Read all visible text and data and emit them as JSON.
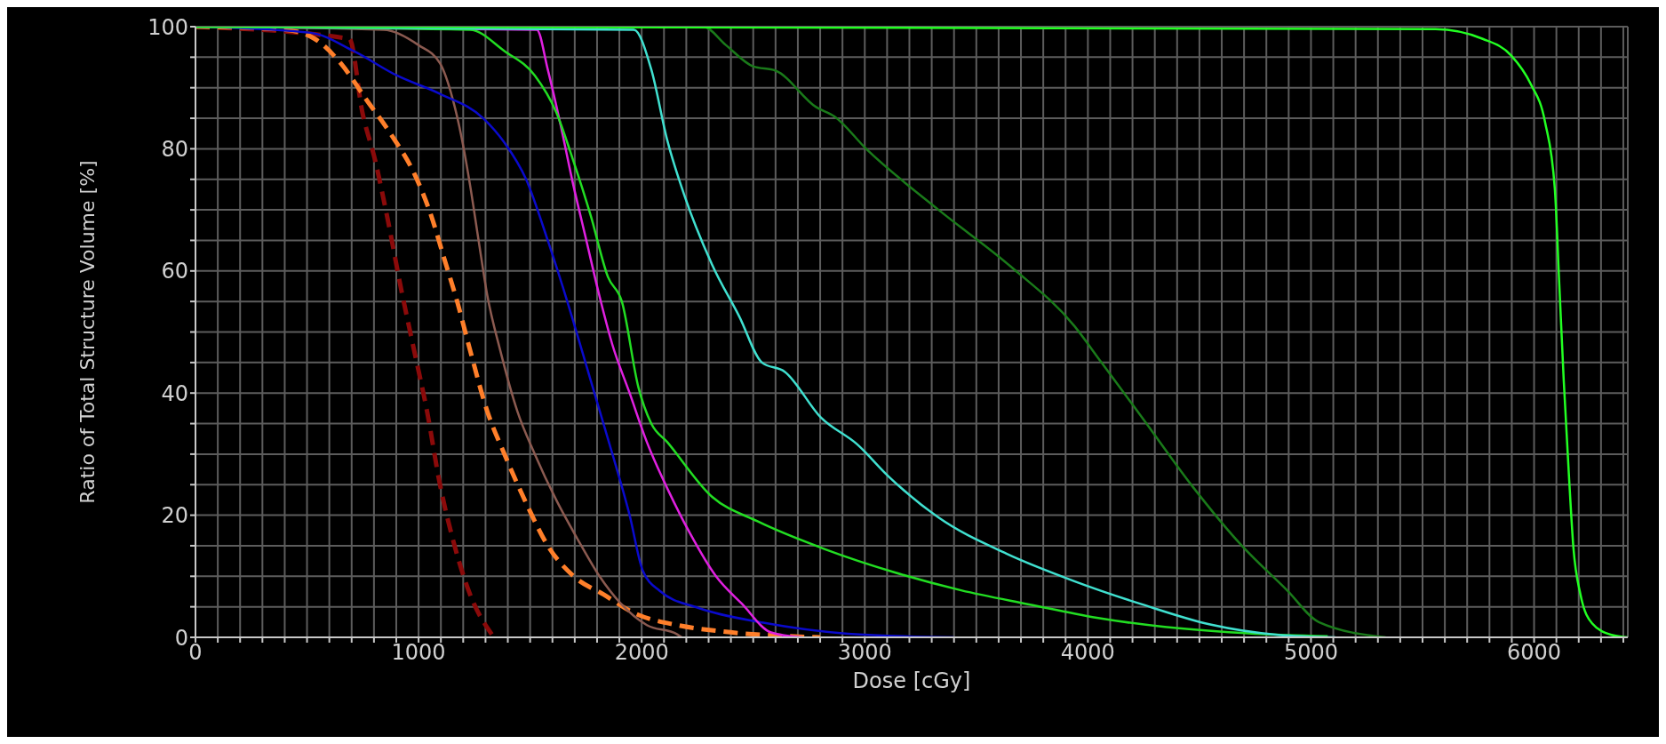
{
  "chart_data": {
    "type": "line",
    "xlabel": "Dose [cGy]",
    "ylabel": "Ratio of Total Structure Volume [%]",
    "grid": true,
    "marker": "none",
    "xlim": [
      0,
      6420
    ],
    "ylim": [
      0,
      100
    ],
    "xticks": [
      0,
      {
        "value": 100,
        "label": null
      },
      {
        "value": 200,
        "label": null
      },
      {
        "value": 300,
        "label": null
      },
      {
        "value": 400,
        "label": null
      },
      {
        "value": 500,
        "label": null
      },
      {
        "value": 600,
        "label": null
      },
      {
        "value": 700,
        "label": null
      },
      {
        "value": 800,
        "label": null
      },
      {
        "value": 900,
        "label": null
      },
      1000,
      {
        "value": 1100,
        "label": null
      },
      {
        "value": 1200,
        "label": null
      },
      {
        "value": 1300,
        "label": null
      },
      {
        "value": 1400,
        "label": null
      },
      {
        "value": 1500,
        "label": null
      },
      {
        "value": 1600,
        "label": null
      },
      {
        "value": 1700,
        "label": null
      },
      {
        "value": 1800,
        "label": null
      },
      {
        "value": 1900,
        "label": null
      },
      2000,
      {
        "value": 2100,
        "label": null
      },
      {
        "value": 2200,
        "label": null
      },
      {
        "value": 2300,
        "label": null
      },
      {
        "value": 2400,
        "label": null
      },
      {
        "value": 2500,
        "label": null
      },
      {
        "value": 2600,
        "label": null
      },
      {
        "value": 2700,
        "label": null
      },
      {
        "value": 2800,
        "label": null
      },
      {
        "value": 2900,
        "label": null
      },
      3000,
      {
        "value": 3100,
        "label": null
      },
      {
        "value": 3200,
        "label": null
      },
      {
        "value": 3300,
        "label": null
      },
      {
        "value": 3400,
        "label": null
      },
      {
        "value": 3500,
        "label": null
      },
      {
        "value": 3600,
        "label": null
      },
      {
        "value": 3700,
        "label": null
      },
      {
        "value": 3800,
        "label": null
      },
      {
        "value": 3900,
        "label": null
      },
      4000,
      {
        "value": 4100,
        "label": null
      },
      {
        "value": 4200,
        "label": null
      },
      {
        "value": 4300,
        "label": null
      },
      {
        "value": 4400,
        "label": null
      },
      {
        "value": 4500,
        "label": null
      },
      {
        "value": 4600,
        "label": null
      },
      {
        "value": 4700,
        "label": null
      },
      {
        "value": 4800,
        "label": null
      },
      {
        "value": 4900,
        "label": null
      },
      5000,
      {
        "value": 5100,
        "label": null
      },
      {
        "value": 5200,
        "label": null
      },
      {
        "value": 5300,
        "label": null
      },
      {
        "value": 5400,
        "label": null
      },
      {
        "value": 5500,
        "label": null
      },
      {
        "value": 5600,
        "label": null
      },
      {
        "value": 5700,
        "label": null
      },
      {
        "value": 5800,
        "label": null
      },
      {
        "value": 5900,
        "label": null
      },
      6000,
      {
        "value": 6100,
        "label": null
      },
      {
        "value": 6200,
        "label": null
      },
      {
        "value": 6300,
        "label": null
      },
      {
        "value": 6400,
        "label": null
      }
    ],
    "yticks": [
      0,
      {
        "value": 5,
        "label": null
      },
      {
        "value": 10,
        "label": null
      },
      {
        "value": 15,
        "label": null
      },
      20,
      {
        "value": 25,
        "label": null
      },
      {
        "value": 30,
        "label": null
      },
      {
        "value": 35,
        "label": null
      },
      40,
      {
        "value": 45,
        "label": null
      },
      {
        "value": 50,
        "label": null
      },
      {
        "value": 55,
        "label": null
      },
      60,
      {
        "value": 65,
        "label": null
      },
      {
        "value": 70,
        "label": null
      },
      {
        "value": 75,
        "label": null
      },
      80,
      {
        "value": 85,
        "label": null
      },
      {
        "value": 90,
        "label": null
      },
      {
        "value": 95,
        "label": null
      },
      100
    ],
    "series": [
      {
        "color": "#8b0a0a",
        "line_style": "dashed",
        "x": [
          0,
          690,
          748,
          806,
          864,
          922,
          980,
          1038,
          1096,
          1154,
          1231,
          1328
        ],
        "values": [
          100,
          98,
          86,
          78,
          68,
          57,
          47,
          37,
          25,
          16,
          7,
          0.5
        ]
      },
      {
        "color": "#ff7f2a",
        "line_style": "dashed",
        "x": [
          0,
          400,
          535,
          651,
          767,
          883,
          980,
          1057,
          1115,
          1173,
          1231,
          1308,
          1385,
          1482,
          1579,
          1695,
          1830,
          1965,
          2159,
          2352,
          2800
        ],
        "values": [
          100,
          99.5,
          98,
          94,
          88,
          82,
          76,
          69,
          62,
          55,
          47,
          37,
          30,
          22,
          15,
          10,
          7,
          4,
          2,
          1,
          0
        ]
      },
      {
        "color": "#8b5a50",
        "line_style": "solid",
        "x": [
          0,
          844,
          999,
          1096,
          1154,
          1192,
          1231,
          1269,
          1308,
          1366,
          1443,
          1521,
          1617,
          1714,
          1811,
          1907,
          2023,
          2159,
          2180
        ],
        "values": [
          100,
          99.5,
          97,
          94,
          88,
          82,
          74,
          65,
          56,
          47,
          37,
          30,
          22.5,
          16,
          10,
          5.5,
          2,
          0.5,
          0
        ]
      },
      {
        "color": "#0a0acc",
        "line_style": "solid",
        "x": [
          0,
          516,
          709,
          903,
          1096,
          1290,
          1385,
          1482,
          1579,
          1675,
          1772,
          1869,
          1946,
          2004,
          2081,
          2255,
          2545,
          2925,
          3400
        ],
        "values": [
          100,
          99,
          96,
          92,
          89,
          85,
          81,
          75,
          65,
          54,
          42,
          30,
          20,
          11,
          7.6,
          4.8,
          2.4,
          0.6,
          0
        ]
      },
      {
        "color": "#e020e0",
        "line_style": "solid",
        "x": [
          0,
          1530,
          1579,
          1636,
          1694,
          1752,
          1810,
          1868,
          1946,
          2023,
          2120,
          2217,
          2333,
          2449,
          2580,
          2720
        ],
        "values": [
          100,
          99.5,
          93,
          84,
          74,
          65,
          56,
          48,
          40,
          32,
          24,
          17,
          10,
          5.5,
          0.8,
          0
        ]
      },
      {
        "color": "#22dd22",
        "line_style": "solid",
        "x": [
          0,
          1231,
          1385,
          1521,
          1617,
          1694,
          1772,
          1849,
          1911,
          1985,
          2043,
          2114,
          2316,
          2519,
          2824,
          3128,
          3432,
          3736,
          4040,
          4345,
          4750,
          5075
        ],
        "values": [
          100,
          99.5,
          96,
          92,
          86,
          78,
          69,
          59,
          55,
          41,
          35,
          32,
          23,
          19,
          14.4,
          10.7,
          7.7,
          5.4,
          3.2,
          1.7,
          0.6,
          0.2
        ]
      },
      {
        "color": "#40e0d0",
        "line_style": "solid",
        "x": [
          0,
          1965,
          2043,
          2114,
          2195,
          2316,
          2438,
          2539,
          2641,
          2803,
          2966,
          3108,
          3331,
          3635,
          3939,
          4243,
          4548,
          4852,
          5110
        ],
        "values": [
          100,
          99.5,
          93,
          81.5,
          72,
          61,
          52.5,
          45,
          43.5,
          36,
          31.6,
          26.3,
          19.6,
          13.7,
          9.2,
          5.4,
          2.1,
          0.4,
          0
        ]
      },
      {
        "color": "#1a7a1a",
        "line_style": "solid",
        "x": [
          0,
          2276,
          2377,
          2499,
          2600,
          2783,
          2864,
          3006,
          3331,
          3655,
          3939,
          4061,
          4243,
          4467,
          4690,
          4893,
          5035,
          5335
        ],
        "values": [
          100,
          100,
          97,
          93.5,
          92.8,
          86.8,
          85.3,
          80,
          70,
          60.7,
          51,
          45,
          36,
          24.8,
          15,
          7.7,
          2.5,
          0
        ]
      },
      {
        "color": "#22ff22",
        "line_style": "solid",
        "x": [
          0,
          5558,
          5770,
          5897,
          5985,
          6049,
          6093,
          6113,
          6133,
          6156,
          6176,
          6208,
          6260,
          6347,
          6420
        ],
        "values": [
          100,
          99.6,
          98,
          95.3,
          90.6,
          84.4,
          73.4,
          57.8,
          42,
          26.6,
          14.8,
          7,
          2.3,
          0.4,
          0
        ]
      }
    ]
  }
}
